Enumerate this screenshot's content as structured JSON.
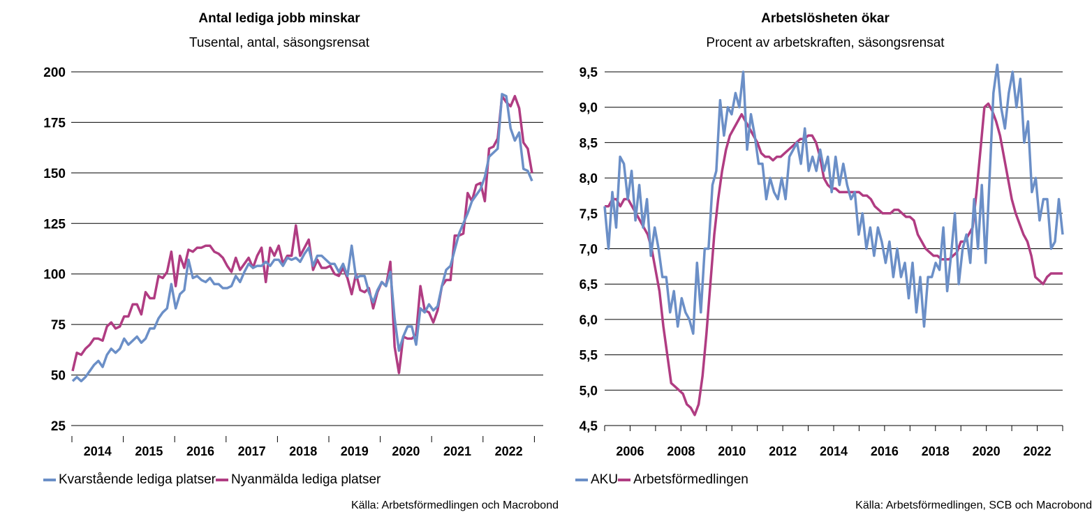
{
  "chart_data": [
    {
      "type": "line",
      "title": "Antal lediga jobb minskar",
      "subtitle": "Tusental, antal, säsongsrensat",
      "source": "Källa: Arbetsförmedlingen och Macrobond",
      "ylim": [
        25,
        200
      ],
      "yticks": [
        "25",
        "50",
        "75",
        "100",
        "125",
        "150",
        "175",
        "200"
      ],
      "xticks": [
        "2014",
        "2015",
        "2016",
        "2017",
        "2018",
        "2019",
        "2020",
        "2021",
        "2022"
      ],
      "grid": true,
      "legend_position": "bottom-left",
      "series": [
        {
          "name": "Kvarstående lediga platser",
          "color": "#6b8fc7",
          "values": [
            47,
            49,
            47,
            49,
            52,
            55,
            57,
            54,
            60,
            63,
            61,
            63,
            68,
            65,
            67,
            69,
            66,
            68,
            73,
            73,
            78,
            81,
            83,
            95,
            83,
            90,
            92,
            107,
            98,
            99,
            97,
            96,
            98,
            95,
            95,
            93,
            93,
            94,
            99,
            96,
            101,
            105,
            103,
            104,
            104,
            106,
            104,
            107,
            107,
            104,
            108,
            107,
            108,
            106,
            110,
            113,
            104,
            109,
            109,
            107,
            105,
            105,
            101,
            105,
            99,
            114,
            98,
            99,
            99,
            91,
            86,
            92,
            96,
            94,
            101,
            78,
            62,
            69,
            74,
            74,
            65,
            83,
            81,
            85,
            82,
            84,
            94,
            102,
            104,
            112,
            120,
            125,
            130,
            136,
            139,
            142,
            148,
            158,
            160,
            162,
            189,
            188,
            172,
            166,
            170,
            152,
            151,
            146
          ]
        },
        {
          "name": "Nyanmälda lediga platser",
          "color": "#b03c82",
          "values": [
            52,
            61,
            60,
            63,
            65,
            68,
            68,
            67,
            74,
            76,
            73,
            74,
            79,
            79,
            85,
            85,
            80,
            91,
            88,
            88,
            99,
            98,
            101,
            111,
            94,
            109,
            103,
            112,
            111,
            113,
            113,
            114,
            114,
            111,
            110,
            108,
            104,
            101,
            108,
            102,
            105,
            108,
            103,
            109,
            113,
            96,
            113,
            109,
            114,
            105,
            109,
            109,
            124,
            109,
            113,
            117,
            102,
            107,
            103,
            103,
            104,
            100,
            99,
            103,
            98,
            90,
            100,
            92,
            91,
            93,
            83,
            91,
            96,
            94,
            106,
            64,
            51,
            69,
            68,
            68,
            70,
            94,
            82,
            81,
            76,
            82,
            94,
            97,
            97,
            119,
            119,
            120,
            140,
            136,
            144,
            145,
            136,
            162,
            163,
            167,
            188,
            185,
            183,
            188,
            182,
            165,
            162,
            150
          ]
        }
      ]
    },
    {
      "type": "line",
      "title": "Arbetslösheten ökar",
      "subtitle": "Procent av arbetskraften, säsongsrensat",
      "source": "Källa: Arbetsförmedlingen, SCB och Macrobond",
      "ylim": [
        4.5,
        9.5
      ],
      "yticks": [
        "4,5",
        "5,0",
        "5,5",
        "6,0",
        "6,5",
        "7,0",
        "7,5",
        "8,0",
        "8,5",
        "9,0",
        "9,5"
      ],
      "xticks": [
        "2006",
        "2008",
        "2010",
        "2012",
        "2014",
        "2016",
        "2018",
        "2020",
        "2022"
      ],
      "grid": true,
      "legend_position": "bottom-left",
      "series": [
        {
          "name": "AKU",
          "color": "#6b8fc7",
          "x_range": [
            2005.0,
            2023.0
          ],
          "values": [
            7.6,
            7.0,
            7.8,
            7.3,
            8.3,
            8.2,
            7.7,
            8.1,
            7.4,
            7.9,
            7.3,
            7.7,
            6.9,
            7.3,
            7.0,
            6.6,
            6.6,
            6.1,
            6.4,
            5.9,
            6.3,
            6.1,
            6.0,
            5.8,
            6.8,
            6.1,
            7.0,
            7.0,
            7.9,
            8.1,
            9.1,
            8.6,
            9.0,
            8.9,
            9.2,
            9.0,
            9.5,
            8.4,
            8.9,
            8.6,
            8.2,
            8.2,
            7.7,
            8.0,
            7.8,
            7.7,
            8.0,
            7.7,
            8.3,
            8.4,
            8.5,
            8.2,
            8.7,
            8.1,
            8.3,
            8.1,
            8.4,
            8.1,
            8.3,
            7.8,
            8.3,
            7.9,
            8.2,
            7.9,
            7.7,
            7.8,
            7.2,
            7.5,
            7.0,
            7.3,
            6.9,
            7.3,
            7.1,
            6.8,
            7.1,
            6.6,
            7.0,
            6.6,
            6.8,
            6.3,
            6.8,
            6.1,
            6.6,
            5.9,
            6.6,
            6.6,
            6.8,
            6.7,
            7.3,
            6.4,
            6.9,
            7.5,
            6.5,
            7.0,
            7.2,
            6.8,
            7.7,
            7.0,
            7.9,
            6.8,
            8.0,
            9.2,
            9.6,
            9.0,
            8.7,
            9.2,
            9.5,
            9.0,
            9.4,
            8.5,
            8.8,
            7.8,
            8.0,
            7.4,
            7.7,
            7.7,
            7.0,
            7.1,
            7.7,
            7.2
          ]
        },
        {
          "name": "Arbetsförmedlingen",
          "color": "#b03c82",
          "x_range": [
            2005.0,
            2023.0
          ],
          "values": [
            7.6,
            7.6,
            7.7,
            7.7,
            7.6,
            7.7,
            7.7,
            7.6,
            7.5,
            7.4,
            7.3,
            7.2,
            7.0,
            6.7,
            6.4,
            5.9,
            5.5,
            5.1,
            5.05,
            5.0,
            4.95,
            4.8,
            4.75,
            4.65,
            4.8,
            5.2,
            5.8,
            6.5,
            7.2,
            7.7,
            8.1,
            8.4,
            8.6,
            8.7,
            8.8,
            8.9,
            8.8,
            8.7,
            8.6,
            8.5,
            8.35,
            8.3,
            8.3,
            8.25,
            8.3,
            8.3,
            8.35,
            8.4,
            8.45,
            8.5,
            8.55,
            8.55,
            8.6,
            8.6,
            8.5,
            8.3,
            8.0,
            7.9,
            7.85,
            7.85,
            7.8,
            7.8,
            7.8,
            7.8,
            7.8,
            7.8,
            7.75,
            7.75,
            7.7,
            7.6,
            7.55,
            7.5,
            7.5,
            7.5,
            7.55,
            7.55,
            7.5,
            7.45,
            7.45,
            7.4,
            7.2,
            7.1,
            7.0,
            6.95,
            6.9,
            6.9,
            6.85,
            6.85,
            6.85,
            6.9,
            6.95,
            7.1,
            7.1,
            7.2,
            7.3,
            7.8,
            8.4,
            9.0,
            9.05,
            8.95,
            8.8,
            8.6,
            8.3,
            8.0,
            7.7,
            7.5,
            7.35,
            7.2,
            7.1,
            6.9,
            6.6,
            6.55,
            6.5,
            6.6,
            6.65,
            6.65,
            6.65,
            6.65
          ]
        }
      ]
    }
  ]
}
